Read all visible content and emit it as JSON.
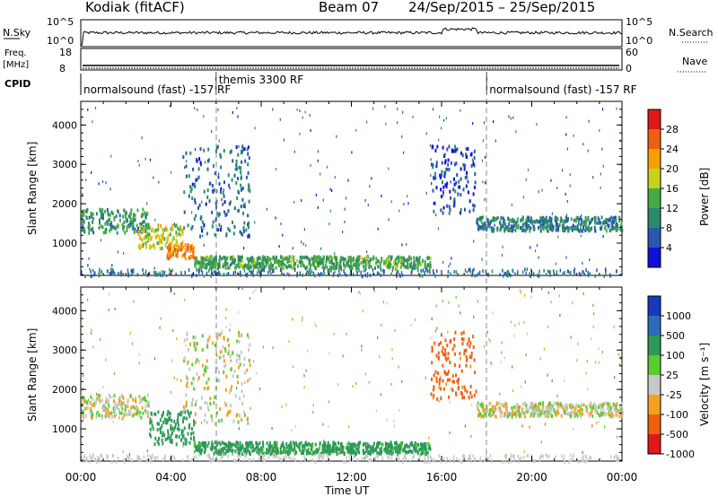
{
  "header": {
    "station": "Kodiak (fitACF)",
    "beam": "Beam 07",
    "dates": "24/Sep/2015 – 25/Sep/2015"
  },
  "top_panels": {
    "nsky_label": "N.Sky",
    "nsky_ticks": [
      "10^5",
      "10^0"
    ],
    "nsearch_label": "N.Search",
    "freq_label_1": "Freq.",
    "freq_label_2": "[MHz]",
    "freq_ticks": [
      "18",
      "8"
    ],
    "nave_label": "Nave",
    "nave_ticks": [
      "60",
      "0"
    ],
    "cpid_label": "CPID",
    "cpid_segments": [
      {
        "start_hr": 0,
        "end_hr": 6,
        "label": "normalsound (fast) -157 RF"
      },
      {
        "start_hr": 6,
        "end_hr": 18,
        "label": "themis 3300 RF"
      },
      {
        "start_hr": 18,
        "end_hr": 24,
        "label": "normalsound (fast) -157 RF"
      }
    ]
  },
  "chart_data": [
    {
      "type": "heatmap",
      "name": "Power",
      "ylabel": "Slant Range [km]",
      "xlabel": "Time UT",
      "x_ticks": [
        "00:00",
        "04:00",
        "08:00",
        "12:00",
        "16:00",
        "20:00",
        "00:00"
      ],
      "x_range_hr": [
        0,
        24
      ],
      "y_ticks": [
        1000,
        2000,
        3000,
        4000
      ],
      "y_range_km": [
        180,
        4600
      ],
      "colorbar_label": "Power [dB]",
      "colorbar_ticks": [
        "28",
        "24",
        "20",
        "16",
        "12",
        "8",
        "4"
      ],
      "colors": [
        "#1010d8",
        "#2858b0",
        "#2a8a6a",
        "#44aa44",
        "#c8d020",
        "#f5a000",
        "#ee6010",
        "#e01818"
      ],
      "regions": [
        {
          "t0": 0.0,
          "t1": 3.0,
          "r0": 1300,
          "r1": 1900,
          "value": 13
        },
        {
          "t0": 2.5,
          "t1": 4.5,
          "r0": 900,
          "r1": 1500,
          "value": 20
        },
        {
          "t0": 3.8,
          "t1": 5.0,
          "r0": 650,
          "r1": 1000,
          "value": 26
        },
        {
          "t0": 4.5,
          "t1": 7.5,
          "r0": 1200,
          "r1": 3500,
          "value": 9
        },
        {
          "t0": 5.0,
          "t1": 15.5,
          "r0": 400,
          "r1": 700,
          "value": 15
        },
        {
          "t0": 15.5,
          "t1": 17.5,
          "r0": 1800,
          "r1": 3500,
          "value": 7
        },
        {
          "t0": 17.5,
          "t1": 24.0,
          "r0": 1350,
          "r1": 1700,
          "value": 11
        }
      ]
    },
    {
      "type": "heatmap",
      "name": "Velocity",
      "ylabel": "Slant Range [km]",
      "xlabel": "Time UT",
      "x_ticks": [
        "00:00",
        "04:00",
        "08:00",
        "12:00",
        "16:00",
        "20:00",
        "00:00"
      ],
      "x_range_hr": [
        0,
        24
      ],
      "y_ticks": [
        1000,
        2000,
        3000,
        4000
      ],
      "y_range_km": [
        180,
        4600
      ],
      "colorbar_label": "Velocity [m s⁻¹]",
      "colorbar_ticks": [
        "1000",
        "500",
        "100",
        "25",
        "-25",
        "-100",
        "-500",
        "-1000"
      ],
      "colors": [
        "#1838c0",
        "#2c6cb8",
        "#2e9a58",
        "#58cc30",
        "#c8c8c8",
        "#f3a020",
        "#ee6010",
        "#e01818"
      ],
      "regions": [
        {
          "t0": 0.0,
          "t1": 3.0,
          "r0": 1300,
          "r1": 1900,
          "value": 0
        },
        {
          "t0": 3.0,
          "t1": 5.0,
          "r0": 650,
          "r1": 1500,
          "value": 200
        },
        {
          "t0": 4.5,
          "t1": 7.5,
          "r0": 1200,
          "r1": 3500,
          "value": 0
        },
        {
          "t0": 5.0,
          "t1": 15.5,
          "r0": 400,
          "r1": 700,
          "value": 150
        },
        {
          "t0": 15.5,
          "t1": 17.5,
          "r0": 1800,
          "r1": 3500,
          "value": -150
        },
        {
          "t0": 17.5,
          "t1": 24.0,
          "r0": 1350,
          "r1": 1700,
          "value": 0
        }
      ]
    }
  ]
}
